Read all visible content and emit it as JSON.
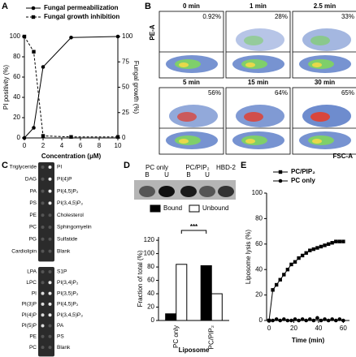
{
  "panels": [
    "A",
    "B",
    "C",
    "D",
    "E"
  ],
  "chart_data": [
    {
      "type": "line",
      "x_label": "Concentration (μM)",
      "y_label": "PI positivity (%)",
      "y2_label": "Fungal growth (%)",
      "x": [
        0,
        1,
        2,
        5,
        10
      ],
      "xlim": [
        0,
        10
      ],
      "xticks": [
        0,
        2,
        4,
        6,
        8,
        10
      ],
      "ylim": [
        0,
        100
      ],
      "yticks": [
        0,
        20,
        40,
        60,
        80,
        100
      ],
      "y2lim": [
        0,
        100
      ],
      "y2ticks": [
        0,
        25,
        50,
        75,
        100
      ],
      "series": [
        {
          "name": "Fungal permeabilization",
          "color": "#000000",
          "marker": "circle",
          "line_style": "solid",
          "values": [
            0,
            10,
            70,
            99,
            100
          ]
        },
        {
          "name": "Fungal growth inhibition",
          "color": "#000000",
          "marker": "square",
          "line_style": "dashed",
          "axis": "y2",
          "values": [
            100,
            85,
            2,
            1,
            1
          ]
        }
      ]
    },
    {
      "type": "bar",
      "y_label": "Fraction of total (%)",
      "x_label": "Liposome",
      "categories": [
        "PC only",
        "PC/PIP₂"
      ],
      "ylim": [
        0,
        125
      ],
      "yticks": [
        0,
        20,
        40,
        60,
        80,
        100,
        120
      ],
      "annotation": "***",
      "series": [
        {
          "name": "Bound",
          "color": "#000000",
          "values": [
            10,
            82
          ]
        },
        {
          "name": "Unbound",
          "color": "#ffffff",
          "values": [
            84,
            40
          ]
        }
      ]
    },
    {
      "type": "line",
      "x_label": "Time (min)",
      "y_label": "Liposome lysis (%)",
      "x": [
        0,
        3,
        6,
        9,
        12,
        15,
        18,
        21,
        24,
        27,
        30,
        33,
        36,
        39,
        42,
        45,
        48,
        51,
        54,
        57,
        60
      ],
      "xlim": [
        -2,
        65
      ],
      "xticks": [
        0,
        20,
        40,
        60
      ],
      "ylim": [
        0,
        100
      ],
      "yticks": [
        0,
        20,
        40,
        60,
        80,
        100
      ],
      "series": [
        {
          "name": "PC/PIP₂",
          "color": "#000000",
          "marker": "square",
          "line_style": "solid",
          "values": [
            0,
            24,
            28,
            32,
            36,
            40,
            44,
            46,
            49,
            51,
            53,
            55,
            56,
            57,
            58,
            59,
            60,
            61,
            62,
            62,
            62
          ]
        },
        {
          "name": "PC only",
          "color": "#000000",
          "marker": "circle",
          "line_style": "solid",
          "values": [
            0,
            0,
            1,
            0,
            1,
            0,
            0,
            1,
            0,
            1,
            0,
            1,
            0,
            2,
            0,
            1,
            0,
            1,
            0,
            1,
            0
          ]
        }
      ]
    }
  ],
  "flow": {
    "y_label": "PE-A",
    "x_label": "FSC-A",
    "plots": [
      {
        "time": "0 min",
        "percent": "0.92%"
      },
      {
        "time": "1 min",
        "percent": "28%"
      },
      {
        "time": "2.5 min",
        "percent": "33%"
      },
      {
        "time": "5 min",
        "percent": "56%"
      },
      {
        "time": "15 min",
        "percent": "64%"
      },
      {
        "time": "30 min",
        "percent": "65%"
      }
    ]
  },
  "lipid_strips": [
    {
      "left": [
        "Triglyceride",
        "DAG",
        "PA",
        "PS",
        "PE",
        "PC",
        "PG",
        "Cardiolipin"
      ],
      "right": [
        "PI",
        "PI(4)P",
        "PI(4,5)P₂",
        "PI(3,4,5)P₃",
        "Cholesterol",
        "Sphingomyelin",
        "Sulfatide",
        "Blank"
      ]
    },
    {
      "left": [
        "LPA",
        "LPC",
        "PI",
        "PI(3)P",
        "PI(4)P",
        "PI(5)P",
        "PE",
        "PC"
      ],
      "right": [
        "S1P",
        "PI(3,4)P₂",
        "PI(3,5)P₂",
        "PI(4,5)P₂",
        "PI(3,4,5)P₃",
        "PA",
        "PS",
        "Blank"
      ]
    }
  ],
  "blot": {
    "groups": [
      "PC only",
      "PC/PIP₂",
      "HBD-2"
    ],
    "lanes": [
      "B",
      "U",
      "B",
      "U"
    ]
  }
}
